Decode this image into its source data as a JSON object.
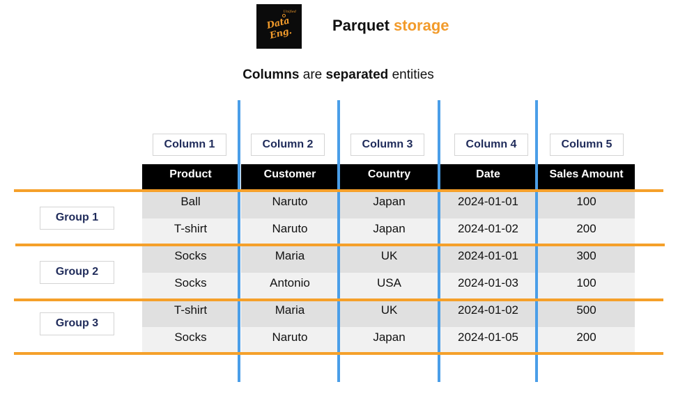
{
  "logo": {
    "text": "Data Eng.",
    "sub": "Unified"
  },
  "title": {
    "part1": "Parquet",
    "part2": "storage"
  },
  "subtitle": {
    "b1": "Columns",
    "t1": " are ",
    "b2": "separated",
    "t2": " entities"
  },
  "column_labels": [
    "Column 1",
    "Column 2",
    "Column 3",
    "Column 4",
    "Column 5"
  ],
  "table": {
    "headers": [
      "Product",
      "Customer",
      "Country",
      "Date",
      "Sales Amount"
    ],
    "rows": [
      [
        "Ball",
        "Naruto",
        "Japan",
        "2024-01-01",
        "100"
      ],
      [
        "T-shirt",
        "Naruto",
        "Japan",
        "2024-01-02",
        "200"
      ],
      [
        "Socks",
        "Maria",
        "UK",
        "2024-01-01",
        "300"
      ],
      [
        "Socks",
        "Antonio",
        "USA",
        "2024-01-03",
        "100"
      ],
      [
        "T-shirt",
        "Maria",
        "UK",
        "2024-01-02",
        "500"
      ],
      [
        "Socks",
        "Naruto",
        "Japan",
        "2024-01-05",
        "200"
      ]
    ]
  },
  "groups": [
    "Group 1",
    "Group 2",
    "Group 3"
  ],
  "colors": {
    "accent": "#f29b2b",
    "column_divider": "#4a9ee8",
    "group_divider": "#f5a02a",
    "label_text": "#1f2b5a"
  }
}
